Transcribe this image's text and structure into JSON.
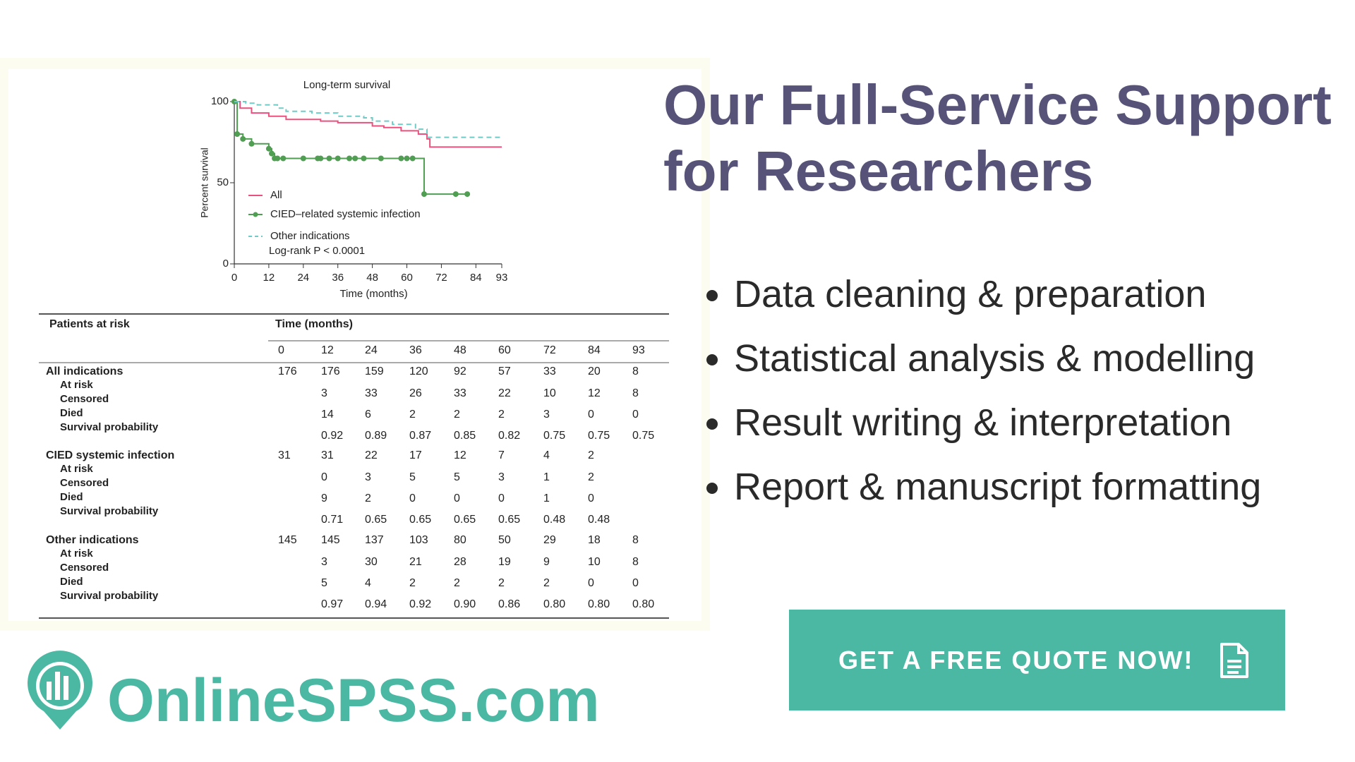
{
  "chart_data": {
    "type": "line",
    "title": "Long-term survival",
    "x_label": "Time (months)",
    "y_label": "Percent survival",
    "xlim": [
      0,
      93
    ],
    "ylim": [
      0,
      100
    ],
    "xticks": [
      0,
      12,
      24,
      36,
      48,
      60,
      72,
      84,
      93
    ],
    "yticks": [
      0,
      50,
      100
    ],
    "step": true,
    "annotation": "Log-rank P < 0.0001",
    "series": [
      {
        "name": "All",
        "color": "#e9527e",
        "style": "solid",
        "markers": false,
        "x": [
          0,
          2,
          6,
          12,
          18,
          30,
          36,
          48,
          52,
          58,
          64,
          67,
          68,
          93
        ],
        "values": [
          100,
          96,
          93,
          91,
          89,
          88,
          87,
          85,
          84,
          82,
          80,
          77,
          72,
          72
        ]
      },
      {
        "name": "CIED–related systemic infection",
        "color": "#4f9e52",
        "style": "solid",
        "markers": true,
        "x": [
          0,
          1,
          3,
          6,
          12,
          13,
          14,
          15,
          17,
          24,
          29,
          30,
          33,
          36,
          40,
          42,
          45,
          51,
          58,
          60,
          62,
          66,
          77,
          81
        ],
        "values": [
          100,
          80,
          77,
          74,
          71,
          68,
          65,
          65,
          65,
          65,
          65,
          65,
          65,
          65,
          65,
          65,
          65,
          65,
          65,
          65,
          65,
          43,
          43,
          43
        ]
      },
      {
        "name": "Other indications",
        "color": "#6fcbc6",
        "style": "dashed",
        "markers": false,
        "x": [
          0,
          4,
          8,
          15,
          18,
          27,
          36,
          45,
          48,
          55,
          63,
          67,
          93
        ],
        "values": [
          100,
          99,
          98,
          96,
          94,
          93,
          91,
          90,
          88,
          86,
          83,
          78,
          78
        ]
      }
    ]
  },
  "table": {
    "header": "Patients at risk",
    "time_header": "Time (months)",
    "times": [
      "0",
      "12",
      "24",
      "36",
      "48",
      "60",
      "72",
      "84",
      "93"
    ],
    "groups": [
      {
        "name": "All indications",
        "at_risk": [
          "176",
          "176",
          "159",
          "120",
          "92",
          "57",
          "33",
          "20",
          "8"
        ],
        "row_labels": [
          "At risk",
          "Censored",
          "Died",
          "Survival probability"
        ],
        "rows": [
          [
            "3",
            "33",
            "26",
            "33",
            "22",
            "10",
            "12",
            "8"
          ],
          [
            "14",
            "6",
            "2",
            "2",
            "2",
            "3",
            "0",
            "0"
          ],
          [
            "0.92",
            "0.89",
            "0.87",
            "0.85",
            "0.82",
            "0.75",
            "0.75",
            "0.75"
          ]
        ]
      },
      {
        "name": "CIED systemic infection",
        "at_risk": [
          "31",
          "31",
          "22",
          "17",
          "12",
          "7",
          "4",
          "2"
        ],
        "row_labels": [
          "At risk",
          "Censored",
          "Died",
          "Survival probability"
        ],
        "rows": [
          [
            "0",
            "3",
            "5",
            "5",
            "3",
            "1",
            "2"
          ],
          [
            "9",
            "2",
            "0",
            "0",
            "0",
            "1",
            "0"
          ],
          [
            "0.71",
            "0.65",
            "0.65",
            "0.65",
            "0.65",
            "0.48",
            "0.48"
          ]
        ]
      },
      {
        "name": "Other indications",
        "at_risk": [
          "145",
          "145",
          "137",
          "103",
          "80",
          "50",
          "29",
          "18",
          "8"
        ],
        "row_labels": [
          "At risk",
          "Censored",
          "Died",
          "Survival probability"
        ],
        "rows": [
          [
            "3",
            "30",
            "21",
            "28",
            "19",
            "9",
            "10",
            "8"
          ],
          [
            "5",
            "4",
            "2",
            "2",
            "2",
            "2",
            "0",
            "0"
          ],
          [
            "0.97",
            "0.94",
            "0.92",
            "0.90",
            "0.86",
            "0.80",
            "0.80",
            "0.80"
          ]
        ]
      }
    ]
  },
  "heading": [
    "Our Full-Service Support",
    "for Researchers"
  ],
  "bullets": [
    "Data cleaning & preparation",
    "Statistical analysis & modelling",
    "Result writing & interpretation",
    "Report & manuscript formatting"
  ],
  "button": "GET A FREE QUOTE NOW!",
  "logo": "OnlineSPSS.com"
}
